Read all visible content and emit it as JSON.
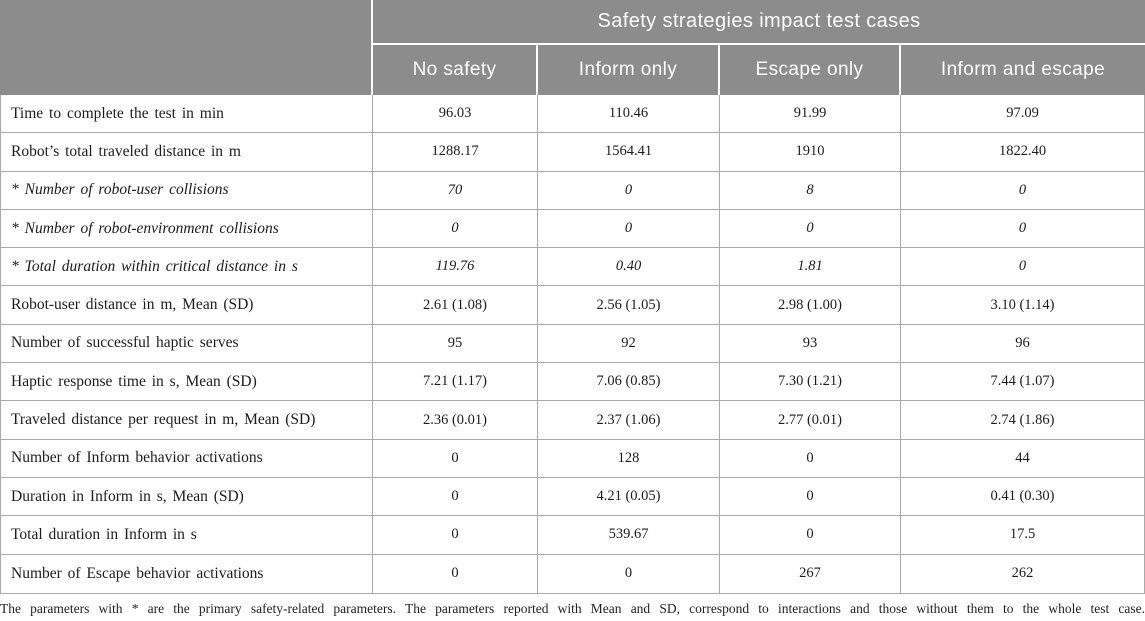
{
  "table": {
    "title": "Safety strategies impact test cases",
    "columns": [
      "No safety",
      "Inform only",
      "Escape only",
      "Inform and escape"
    ],
    "rows": [
      {
        "label": "Time to complete the test in min",
        "italic": false,
        "values": [
          "96.03",
          "110.46",
          "91.99",
          "97.09"
        ]
      },
      {
        "label": "Robot’s total traveled distance in m",
        "italic": false,
        "values": [
          "1288.17",
          "1564.41",
          "1910",
          "1822.40"
        ]
      },
      {
        "label": "* Number of robot-user collisions",
        "italic": true,
        "values": [
          "70",
          "0",
          "8",
          "0"
        ]
      },
      {
        "label": "* Number of robot-environment collisions",
        "italic": true,
        "values": [
          "0",
          "0",
          "0",
          "0"
        ]
      },
      {
        "label": "* Total duration within critical distance in s",
        "italic": true,
        "values": [
          "119.76",
          "0.40",
          "1.81",
          "0"
        ]
      },
      {
        "label": "Robot-user distance in m, Mean (SD)",
        "italic": false,
        "values": [
          "2.61 (1.08)",
          "2.56 (1.05)",
          "2.98 (1.00)",
          "3.10 (1.14)"
        ]
      },
      {
        "label": "Number of successful haptic serves",
        "italic": false,
        "values": [
          "95",
          "92",
          "93",
          "96"
        ]
      },
      {
        "label": "Haptic response time in s, Mean (SD)",
        "italic": false,
        "values": [
          "7.21 (1.17)",
          "7.06 (0.85)",
          "7.30 (1.21)",
          "7.44 (1.07)"
        ]
      },
      {
        "label": "Traveled distance per request in m, Mean (SD)",
        "italic": false,
        "values": [
          "2.36 (0.01)",
          "2.37 (1.06)",
          "2.77 (0.01)",
          "2.74 (1.86)"
        ]
      },
      {
        "label": "Number of Inform behavior activations",
        "italic": false,
        "values": [
          "0",
          "128",
          "0",
          "44"
        ]
      },
      {
        "label": "Duration in Inform in s, Mean (SD)",
        "italic": false,
        "values": [
          "0",
          "4.21 (0.05)",
          "0",
          "0.41 (0.30)"
        ]
      },
      {
        "label": "Total duration in Inform in s",
        "italic": false,
        "values": [
          "0",
          "539.67",
          "0",
          "17.5"
        ]
      },
      {
        "label": "Number of Escape behavior activations",
        "italic": false,
        "values": [
          "0",
          "0",
          "267",
          "262"
        ]
      }
    ],
    "footnote": "The parameters with * are the primary safety-related parameters. The parameters reported with Mean and SD, correspond to interactions and those without them to the whole test case.",
    "colors": {
      "header_bg": "#8c8c8c",
      "header_text": "#fdfdfd",
      "border": "#a9a9a9",
      "body_text": "#1c1c1c"
    }
  }
}
